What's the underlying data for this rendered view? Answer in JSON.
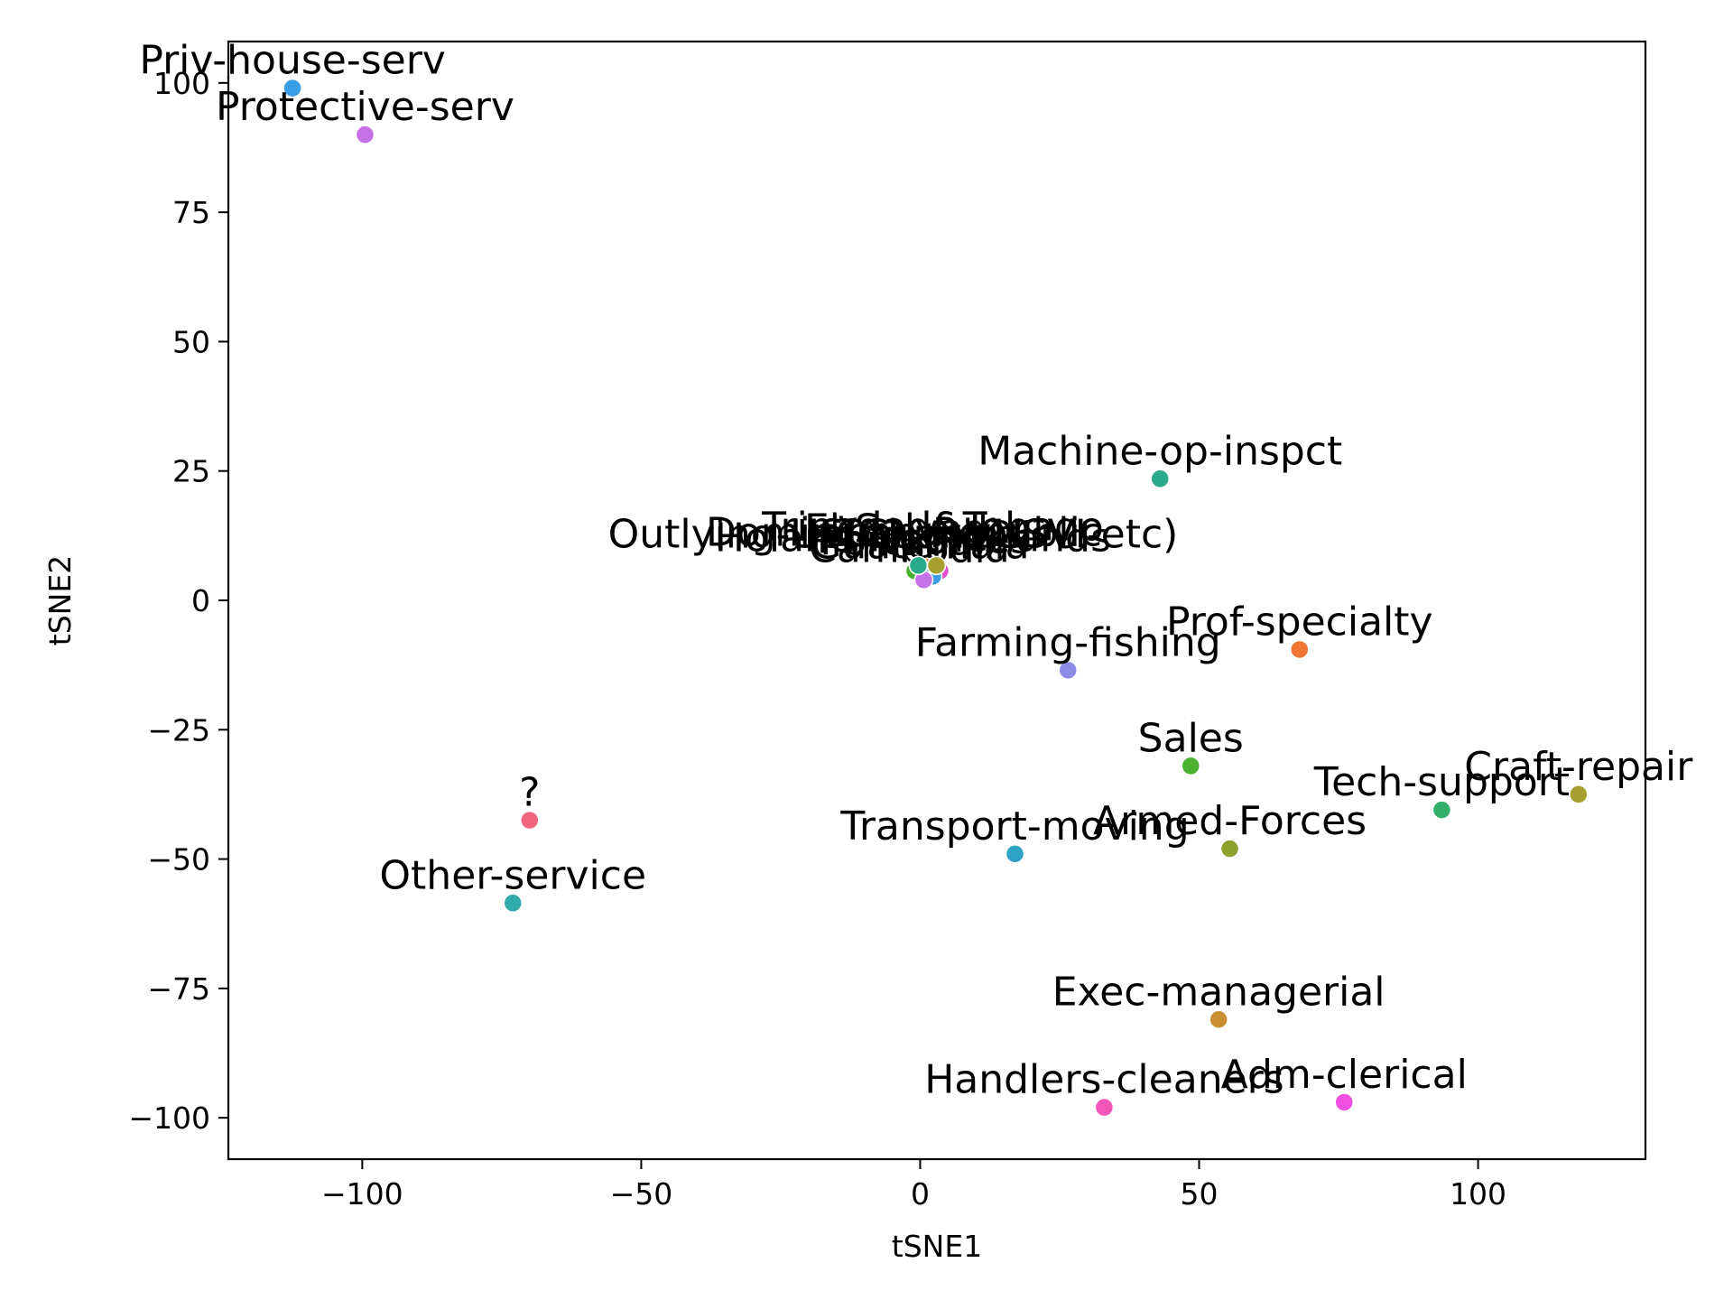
{
  "chart_data": {
    "type": "scatter",
    "xlabel": "tSNE1",
    "ylabel": "tSNE2",
    "xlim": [
      -124,
      130
    ],
    "ylim": [
      -108,
      108
    ],
    "xticks": [
      -100,
      -50,
      0,
      50,
      100
    ],
    "yticks": [
      -100,
      -75,
      -50,
      -25,
      0,
      25,
      50,
      75,
      100
    ],
    "xtick_labels": [
      "−100",
      "−50",
      "0",
      "50",
      "100"
    ],
    "ytick_labels": [
      "−100",
      "−75",
      "−50",
      "−25",
      "0",
      "25",
      "50",
      "75",
      "100"
    ],
    "grid": false,
    "points": [
      {
        "label": "Priv-house-serv",
        "x": -112.5,
        "y": 99,
        "color": "#3a9ee6"
      },
      {
        "label": "Protective-serv",
        "x": -99.5,
        "y": 90,
        "color": "#c572e8"
      },
      {
        "label": "Machine-op-inspct",
        "x": 43,
        "y": 23.5,
        "color": "#2aaa8a"
      },
      {
        "label": "Prof-specialty",
        "x": 68,
        "y": -9.5,
        "color": "#ef7733"
      },
      {
        "label": "Farming-fishing",
        "x": 26.5,
        "y": -13.5,
        "color": "#8e8ce8"
      },
      {
        "label": "Sales",
        "x": 48.5,
        "y": -32,
        "color": "#4cb032"
      },
      {
        "label": "Tech-support",
        "x": 93.5,
        "y": -40.5,
        "color": "#33af6b"
      },
      {
        "label": "Craft-repair",
        "x": 118,
        "y": -37.5,
        "color": "#a8a02e"
      },
      {
        "label": "Armed-Forces",
        "x": 55.5,
        "y": -48,
        "color": "#8ca02e"
      },
      {
        "label": "Transport-moving",
        "x": 17,
        "y": -49,
        "color": "#2ea3c6"
      },
      {
        "label": "?",
        "x": -70,
        "y": -42.5,
        "color": "#f0667f"
      },
      {
        "label": "Other-service",
        "x": -73,
        "y": -58.5,
        "color": "#32aaaa"
      },
      {
        "label": "Exec-managerial",
        "x": 53.5,
        "y": -81,
        "color": "#c98f32"
      },
      {
        "label": "Handlers-cleaners",
        "x": 33,
        "y": -98,
        "color": "#f356b9"
      },
      {
        "label": "Adm-clerical",
        "x": 76,
        "y": -97,
        "color": "#f050e0"
      }
    ],
    "cluster": {
      "x": 0,
      "y": 5,
      "labels": [
        "Outlying-US(Guam-USVI-etc)",
        "Dominican-Republic",
        "Trinadad&Tobago",
        "Holand-Netherlands",
        "El-Salvador",
        "Philippines",
        "Portugal",
        "Columbia",
        "Guatemala",
        "Cambodia"
      ],
      "dot_colors": [
        "#f0667f",
        "#e04fd0",
        "#ef7733",
        "#4cb032",
        "#3a9ee6",
        "#c572e8",
        "#2aaa8a",
        "#a8a02e"
      ]
    }
  }
}
